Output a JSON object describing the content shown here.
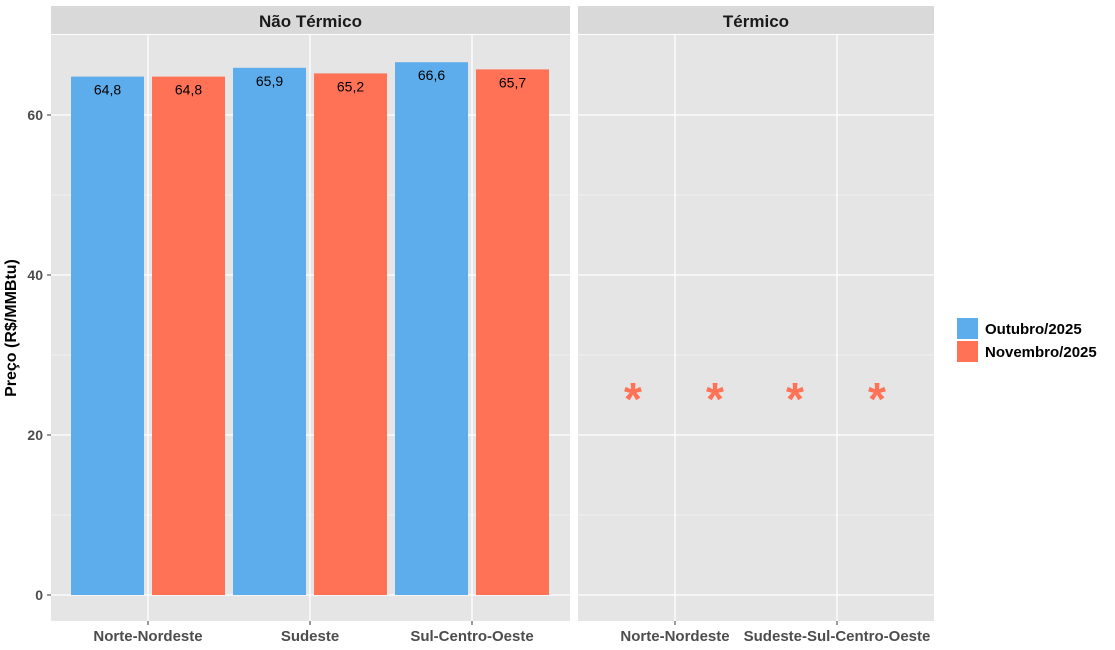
{
  "chart_data": {
    "type": "bar",
    "ylabel": "Preço (R$/MMBtu)",
    "ylim": [
      0,
      70
    ],
    "yticks": [
      0,
      20,
      40,
      60
    ],
    "grid": true,
    "legend_position": "right",
    "colors": {
      "outubro": "#5DADEC",
      "novembro": "#FF7256"
    },
    "series_names": [
      "Outubro/2025",
      "Novembro/2025"
    ],
    "panels": [
      {
        "title": "Não Térmico",
        "categories": [
          "Norte-Nordeste",
          "Sudeste",
          "Sul-Centro-Oeste"
        ],
        "series": [
          {
            "name": "Outubro/2025",
            "values": [
              64.8,
              65.9,
              66.6
            ],
            "labels": [
              "64,8",
              "65,9",
              "66,6"
            ]
          },
          {
            "name": "Novembro/2025",
            "values": [
              64.8,
              65.2,
              65.7
            ],
            "labels": [
              "64,8",
              "65,2",
              "65,7"
            ]
          }
        ]
      },
      {
        "title": "Térmico",
        "categories": [
          "Norte-Nordeste",
          "Sudeste-Sul-Centro-Oeste"
        ],
        "series": [],
        "missing_marker": "*",
        "missing_marker_y": 26
      }
    ]
  }
}
